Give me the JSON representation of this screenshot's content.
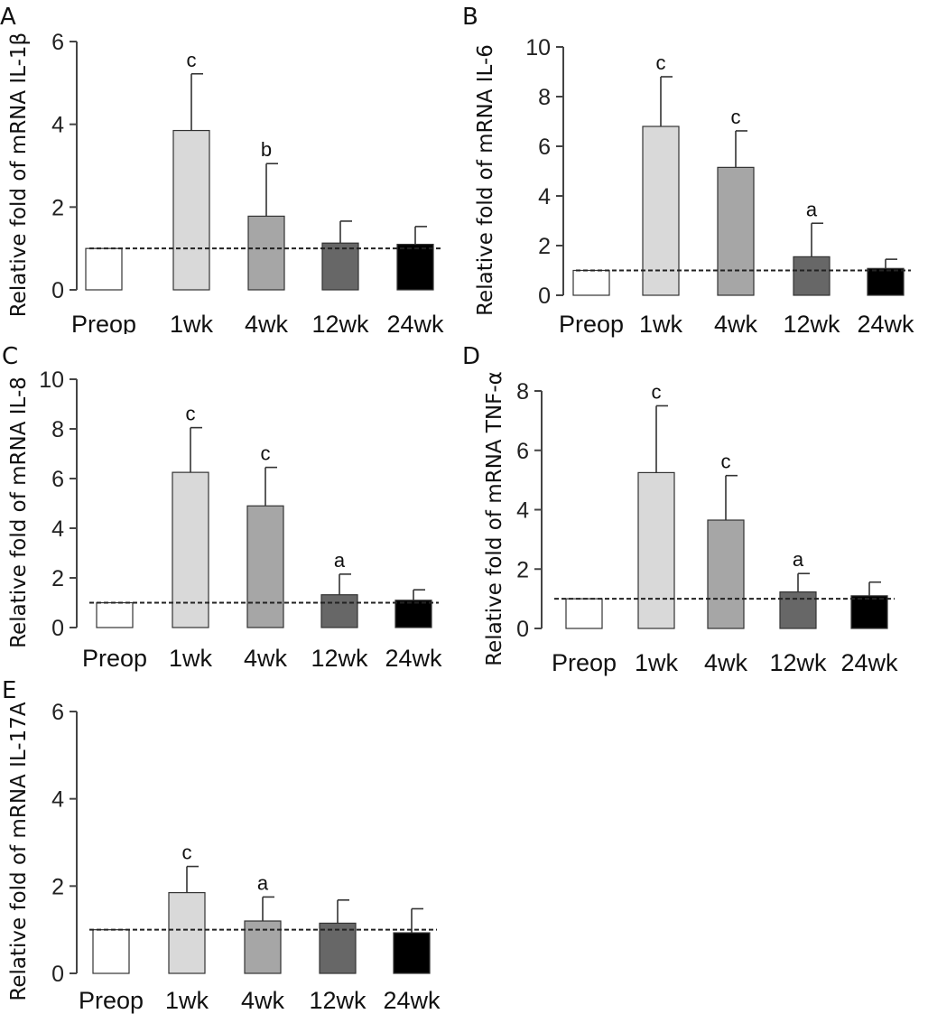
{
  "categories": [
    "Preop",
    "1wk",
    "4wk",
    "12wk",
    "24wk"
  ],
  "bar_colors": [
    "#ffffff",
    "#d9d9d9",
    "#a6a6a6",
    "#676767",
    "#000000"
  ],
  "reference_line": 1,
  "chart_data": [
    {
      "type": "bar",
      "panel": "A",
      "ylabel": "Relative fold of mRNA IL-1β",
      "ylim": [
        0,
        6
      ],
      "yticks": [
        0,
        2,
        4,
        6
      ],
      "categories": [
        "Preop",
        "1wk",
        "4wk",
        "12wk",
        "24wk"
      ],
      "values": [
        1.0,
        3.85,
        1.78,
        1.13,
        1.1
      ],
      "errors": [
        0,
        1.37,
        1.27,
        0.53,
        0.43
      ],
      "significance": [
        "",
        "c",
        "b",
        "",
        ""
      ]
    },
    {
      "type": "bar",
      "panel": "B",
      "ylabel": "Relative fold of mRNA IL-6",
      "ylim": [
        0,
        10
      ],
      "yticks": [
        0,
        2,
        4,
        6,
        8,
        10
      ],
      "categories": [
        "Preop",
        "1wk",
        "4wk",
        "12wk",
        "24wk"
      ],
      "values": [
        1.0,
        6.8,
        5.15,
        1.55,
        1.08
      ],
      "errors": [
        0,
        2.0,
        1.47,
        1.35,
        0.37
      ],
      "significance": [
        "",
        "c",
        "c",
        "a",
        ""
      ]
    },
    {
      "type": "bar",
      "panel": "C",
      "ylabel": "Relative fold of mRNA IL-8",
      "ylim": [
        0,
        10
      ],
      "yticks": [
        0,
        2,
        4,
        6,
        8,
        10
      ],
      "categories": [
        "Preop",
        "1wk",
        "4wk",
        "12wk",
        "24wk"
      ],
      "values": [
        1.0,
        6.25,
        4.9,
        1.32,
        1.1
      ],
      "errors": [
        0,
        1.8,
        1.55,
        0.83,
        0.42
      ],
      "significance": [
        "",
        "c",
        "c",
        "a",
        ""
      ]
    },
    {
      "type": "bar",
      "panel": "D",
      "ylabel": "Relative fold of mRNA TNF-α",
      "ylim": [
        0,
        8
      ],
      "yticks": [
        0,
        2,
        4,
        6,
        8
      ],
      "categories": [
        "Preop",
        "1wk",
        "4wk",
        "12wk",
        "24wk"
      ],
      "values": [
        1.0,
        5.25,
        3.65,
        1.23,
        1.1
      ],
      "errors": [
        0,
        2.25,
        1.5,
        0.62,
        0.46
      ],
      "significance": [
        "",
        "c",
        "c",
        "a",
        ""
      ]
    },
    {
      "type": "bar",
      "panel": "E",
      "ylabel": "Relative fold of mRNA IL-17A",
      "ylim": [
        0,
        6
      ],
      "yticks": [
        0,
        2,
        4,
        6
      ],
      "categories": [
        "Preop",
        "1wk",
        "4wk",
        "12wk",
        "24wk"
      ],
      "values": [
        1.0,
        1.85,
        1.2,
        1.15,
        0.93
      ],
      "errors": [
        0,
        0.6,
        0.55,
        0.53,
        0.55
      ],
      "significance": [
        "",
        "c",
        "a",
        "",
        ""
      ]
    }
  ]
}
